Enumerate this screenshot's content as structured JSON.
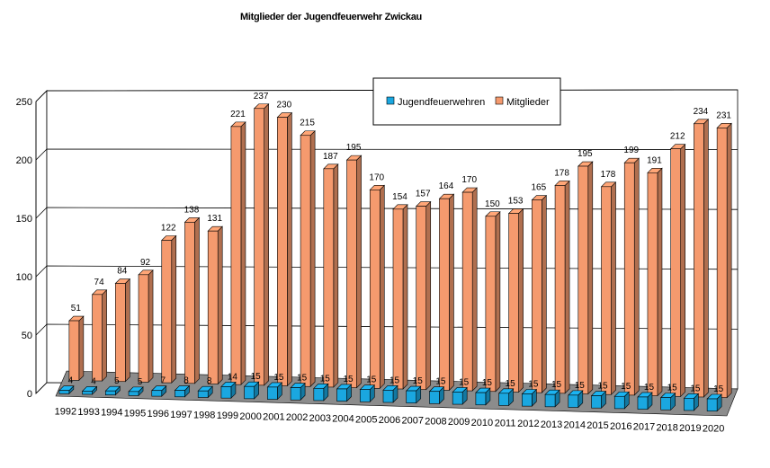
{
  "chart_data": {
    "type": "bar",
    "title": "Mitglieder der Jugendfeuerwehr Zwickau",
    "xlabel": "",
    "ylabel": "",
    "ylim": [
      0,
      250
    ],
    "yticks": [
      "0",
      "50",
      "100",
      "150",
      "200",
      "250"
    ],
    "grid": true,
    "legend": "top-center",
    "categories": [
      "1992",
      "1993",
      "1994",
      "1995",
      "1996",
      "1997",
      "1998",
      "1999",
      "2000",
      "2001",
      "2002",
      "2003",
      "2004",
      "2005",
      "2006",
      "2007",
      "2008",
      "2009",
      "2010",
      "2011",
      "2012",
      "2013",
      "2014",
      "2015",
      "2016",
      "2017",
      "2018",
      "2019",
      "2020"
    ],
    "series": [
      {
        "name": "Jugendfeuerwehren",
        "color": "#1aa7e0",
        "values": [
          4,
          4,
          5,
          5,
          7,
          8,
          8,
          14,
          15,
          15,
          15,
          15,
          15,
          15,
          15,
          15,
          15,
          15,
          15,
          15,
          15,
          15,
          15,
          15,
          15,
          15,
          15,
          15,
          15
        ],
        "labels": [
          "4",
          "4",
          "5",
          "5",
          "7",
          "8",
          "8",
          "14",
          "15",
          "15",
          "15",
          "15",
          "15",
          "15",
          "15",
          "15",
          "15",
          "15",
          "15",
          "15",
          "15",
          "15",
          "15",
          "15",
          "15",
          "15",
          "15",
          "15",
          "15"
        ]
      },
      {
        "name": "Mitglieder",
        "color": "#f59a6e",
        "values": [
          51,
          74,
          84,
          92,
          122,
          138,
          131,
          221,
          237,
          230,
          215,
          187,
          195,
          170,
          154,
          157,
          164,
          170,
          150,
          153,
          165,
          178,
          195,
          178,
          199,
          191,
          212,
          234,
          231
        ],
        "labels": [
          "51",
          "74",
          "84",
          "92",
          "122",
          "138",
          "131",
          "221",
          "237",
          "230",
          "215",
          "187",
          "195",
          "170",
          "154",
          "157",
          "164",
          "170",
          "150",
          "153",
          "165",
          "178",
          "195",
          "178",
          "199",
          "191",
          "212",
          "234",
          "231"
        ]
      }
    ]
  }
}
